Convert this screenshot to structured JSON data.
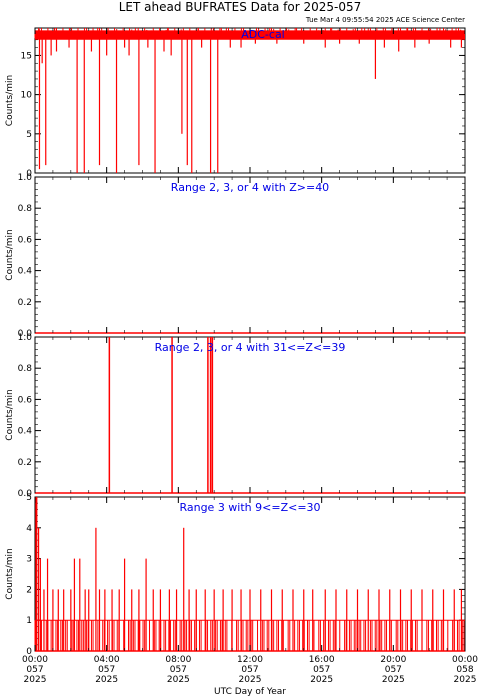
{
  "title": "LET ahead BUFRATES Data for 2025-057",
  "timestamp": "Tue Mar  4 09:55:54 2025 ACE Science Center",
  "x_axis_label": "UTC Day of Year",
  "x_ticks": [
    {
      "t": "00:00",
      "d": "057",
      "y": "2025",
      "h": 0
    },
    {
      "t": "04:00",
      "d": "057",
      "y": "2025",
      "h": 4
    },
    {
      "t": "08:00",
      "d": "057",
      "y": "2025",
      "h": 8
    },
    {
      "t": "12:00",
      "d": "057",
      "y": "2025",
      "h": 12
    },
    {
      "t": "16:00",
      "d": "057",
      "y": "2025",
      "h": 16
    },
    {
      "t": "20:00",
      "d": "057",
      "y": "2025",
      "h": 20
    },
    {
      "t": "00:00",
      "d": "058",
      "y": "2025",
      "h": 24
    }
  ],
  "colors": {
    "series": "#ff0000",
    "label": "#0000e6",
    "axis": "#000000"
  },
  "chart_data": [
    {
      "type": "line",
      "panel_label": "ADC-cal",
      "ylabel": "Counts/min",
      "ylim": [
        0,
        18.5
      ],
      "yticks": [
        0,
        5,
        10,
        15
      ],
      "baseline": 17.5,
      "dips": [
        [
          0.25,
          0.5
        ],
        [
          0.4,
          14
        ],
        [
          0.6,
          1
        ],
        [
          0.9,
          15
        ],
        [
          1.2,
          15.5
        ],
        [
          1.9,
          16
        ],
        [
          2.35,
          0
        ],
        [
          2.75,
          0
        ],
        [
          3.15,
          15.5
        ],
        [
          3.6,
          1
        ],
        [
          4.0,
          15
        ],
        [
          4.55,
          0
        ],
        [
          5.0,
          16
        ],
        [
          5.25,
          15
        ],
        [
          5.8,
          1
        ],
        [
          6.3,
          16
        ],
        [
          6.7,
          0
        ],
        [
          7.2,
          15.5
        ],
        [
          7.6,
          15
        ],
        [
          8.2,
          5
        ],
        [
          8.5,
          1
        ],
        [
          8.75,
          0
        ],
        [
          9.3,
          16
        ],
        [
          9.8,
          0
        ],
        [
          10.2,
          0
        ],
        [
          10.9,
          16
        ],
        [
          11.5,
          16
        ],
        [
          12.3,
          16.5
        ],
        [
          13.5,
          16.5
        ],
        [
          15.0,
          16.5
        ],
        [
          16.2,
          16
        ],
        [
          17.0,
          16.5
        ],
        [
          18.1,
          16.5
        ],
        [
          19.0,
          12
        ],
        [
          19.5,
          16
        ],
        [
          20.3,
          15.5
        ],
        [
          21.2,
          16
        ],
        [
          22.0,
          16.5
        ],
        [
          23.2,
          16
        ],
        [
          23.8,
          16
        ]
      ],
      "spikes": [
        [
          0.2,
          18.5
        ],
        [
          1.1,
          18.5
        ],
        [
          3.5,
          18.5
        ],
        [
          5.6,
          18.5
        ],
        [
          7.4,
          18.5
        ],
        [
          9.1,
          18.5
        ],
        [
          10.4,
          18.5
        ],
        [
          13.1,
          18.5
        ],
        [
          14.6,
          18.5
        ],
        [
          16.5,
          18.5
        ],
        [
          18.4,
          18.5
        ],
        [
          20.8,
          18.5
        ],
        [
          22.6,
          18.5
        ],
        [
          23.5,
          18.5
        ]
      ]
    },
    {
      "type": "line",
      "panel_label": "Range 2, 3, or 4 with Z>=40",
      "ylabel": "Counts/min",
      "ylim": [
        0,
        1
      ],
      "yticks": [
        0.0,
        0.2,
        0.4,
        0.6,
        0.8,
        1.0
      ],
      "spikes": []
    },
    {
      "type": "line",
      "panel_label": "Range 2, 3, or 4 with 31<=Z<=39",
      "ylabel": "Counts/min",
      "ylim": [
        0,
        1
      ],
      "yticks": [
        0.0,
        0.2,
        0.4,
        0.6,
        0.8,
        1.0
      ],
      "spikes": [
        [
          4.15,
          1
        ],
        [
          7.65,
          1
        ],
        [
          9.65,
          1
        ],
        [
          9.8,
          1
        ],
        [
          9.9,
          1
        ]
      ]
    },
    {
      "type": "line",
      "panel_label": "Range 3 with 9<=Z<=30",
      "ylabel": "Counts/min",
      "ylim": [
        0,
        5
      ],
      "yticks": [
        0,
        1,
        2,
        3,
        4,
        5
      ],
      "spikes": [
        [
          0.05,
          5
        ],
        [
          0.1,
          5
        ],
        [
          0.2,
          4
        ],
        [
          0.3,
          3
        ],
        [
          0.5,
          2
        ],
        [
          0.7,
          3
        ],
        [
          1.0,
          2
        ],
        [
          1.3,
          2
        ],
        [
          1.6,
          2
        ],
        [
          2.0,
          2
        ],
        [
          2.2,
          3
        ],
        [
          2.5,
          3
        ],
        [
          2.8,
          2
        ],
        [
          3.0,
          2
        ],
        [
          3.4,
          4
        ],
        [
          3.6,
          2
        ],
        [
          3.9,
          2
        ],
        [
          4.3,
          2
        ],
        [
          4.7,
          2
        ],
        [
          5.0,
          3
        ],
        [
          5.4,
          2
        ],
        [
          5.8,
          2
        ],
        [
          6.2,
          3
        ],
        [
          6.6,
          2
        ],
        [
          7.0,
          2
        ],
        [
          7.5,
          2
        ],
        [
          7.9,
          2
        ],
        [
          8.3,
          4
        ],
        [
          8.6,
          2
        ],
        [
          9.0,
          2
        ],
        [
          9.5,
          2
        ],
        [
          10.0,
          2
        ],
        [
          10.5,
          2
        ],
        [
          11.0,
          2
        ],
        [
          11.5,
          2
        ],
        [
          12.0,
          2
        ],
        [
          12.6,
          2
        ],
        [
          13.2,
          2
        ],
        [
          13.8,
          2
        ],
        [
          14.4,
          2
        ],
        [
          15.0,
          2
        ],
        [
          15.5,
          2
        ],
        [
          16.2,
          2
        ],
        [
          16.8,
          2
        ],
        [
          17.4,
          2
        ],
        [
          18.0,
          2
        ],
        [
          18.6,
          2
        ],
        [
          19.2,
          2
        ],
        [
          19.8,
          2
        ],
        [
          20.4,
          2
        ],
        [
          21.0,
          2
        ],
        [
          21.6,
          2
        ],
        [
          22.2,
          2
        ],
        [
          22.8,
          2
        ],
        [
          23.4,
          2
        ],
        [
          23.8,
          2
        ]
      ]
    }
  ]
}
